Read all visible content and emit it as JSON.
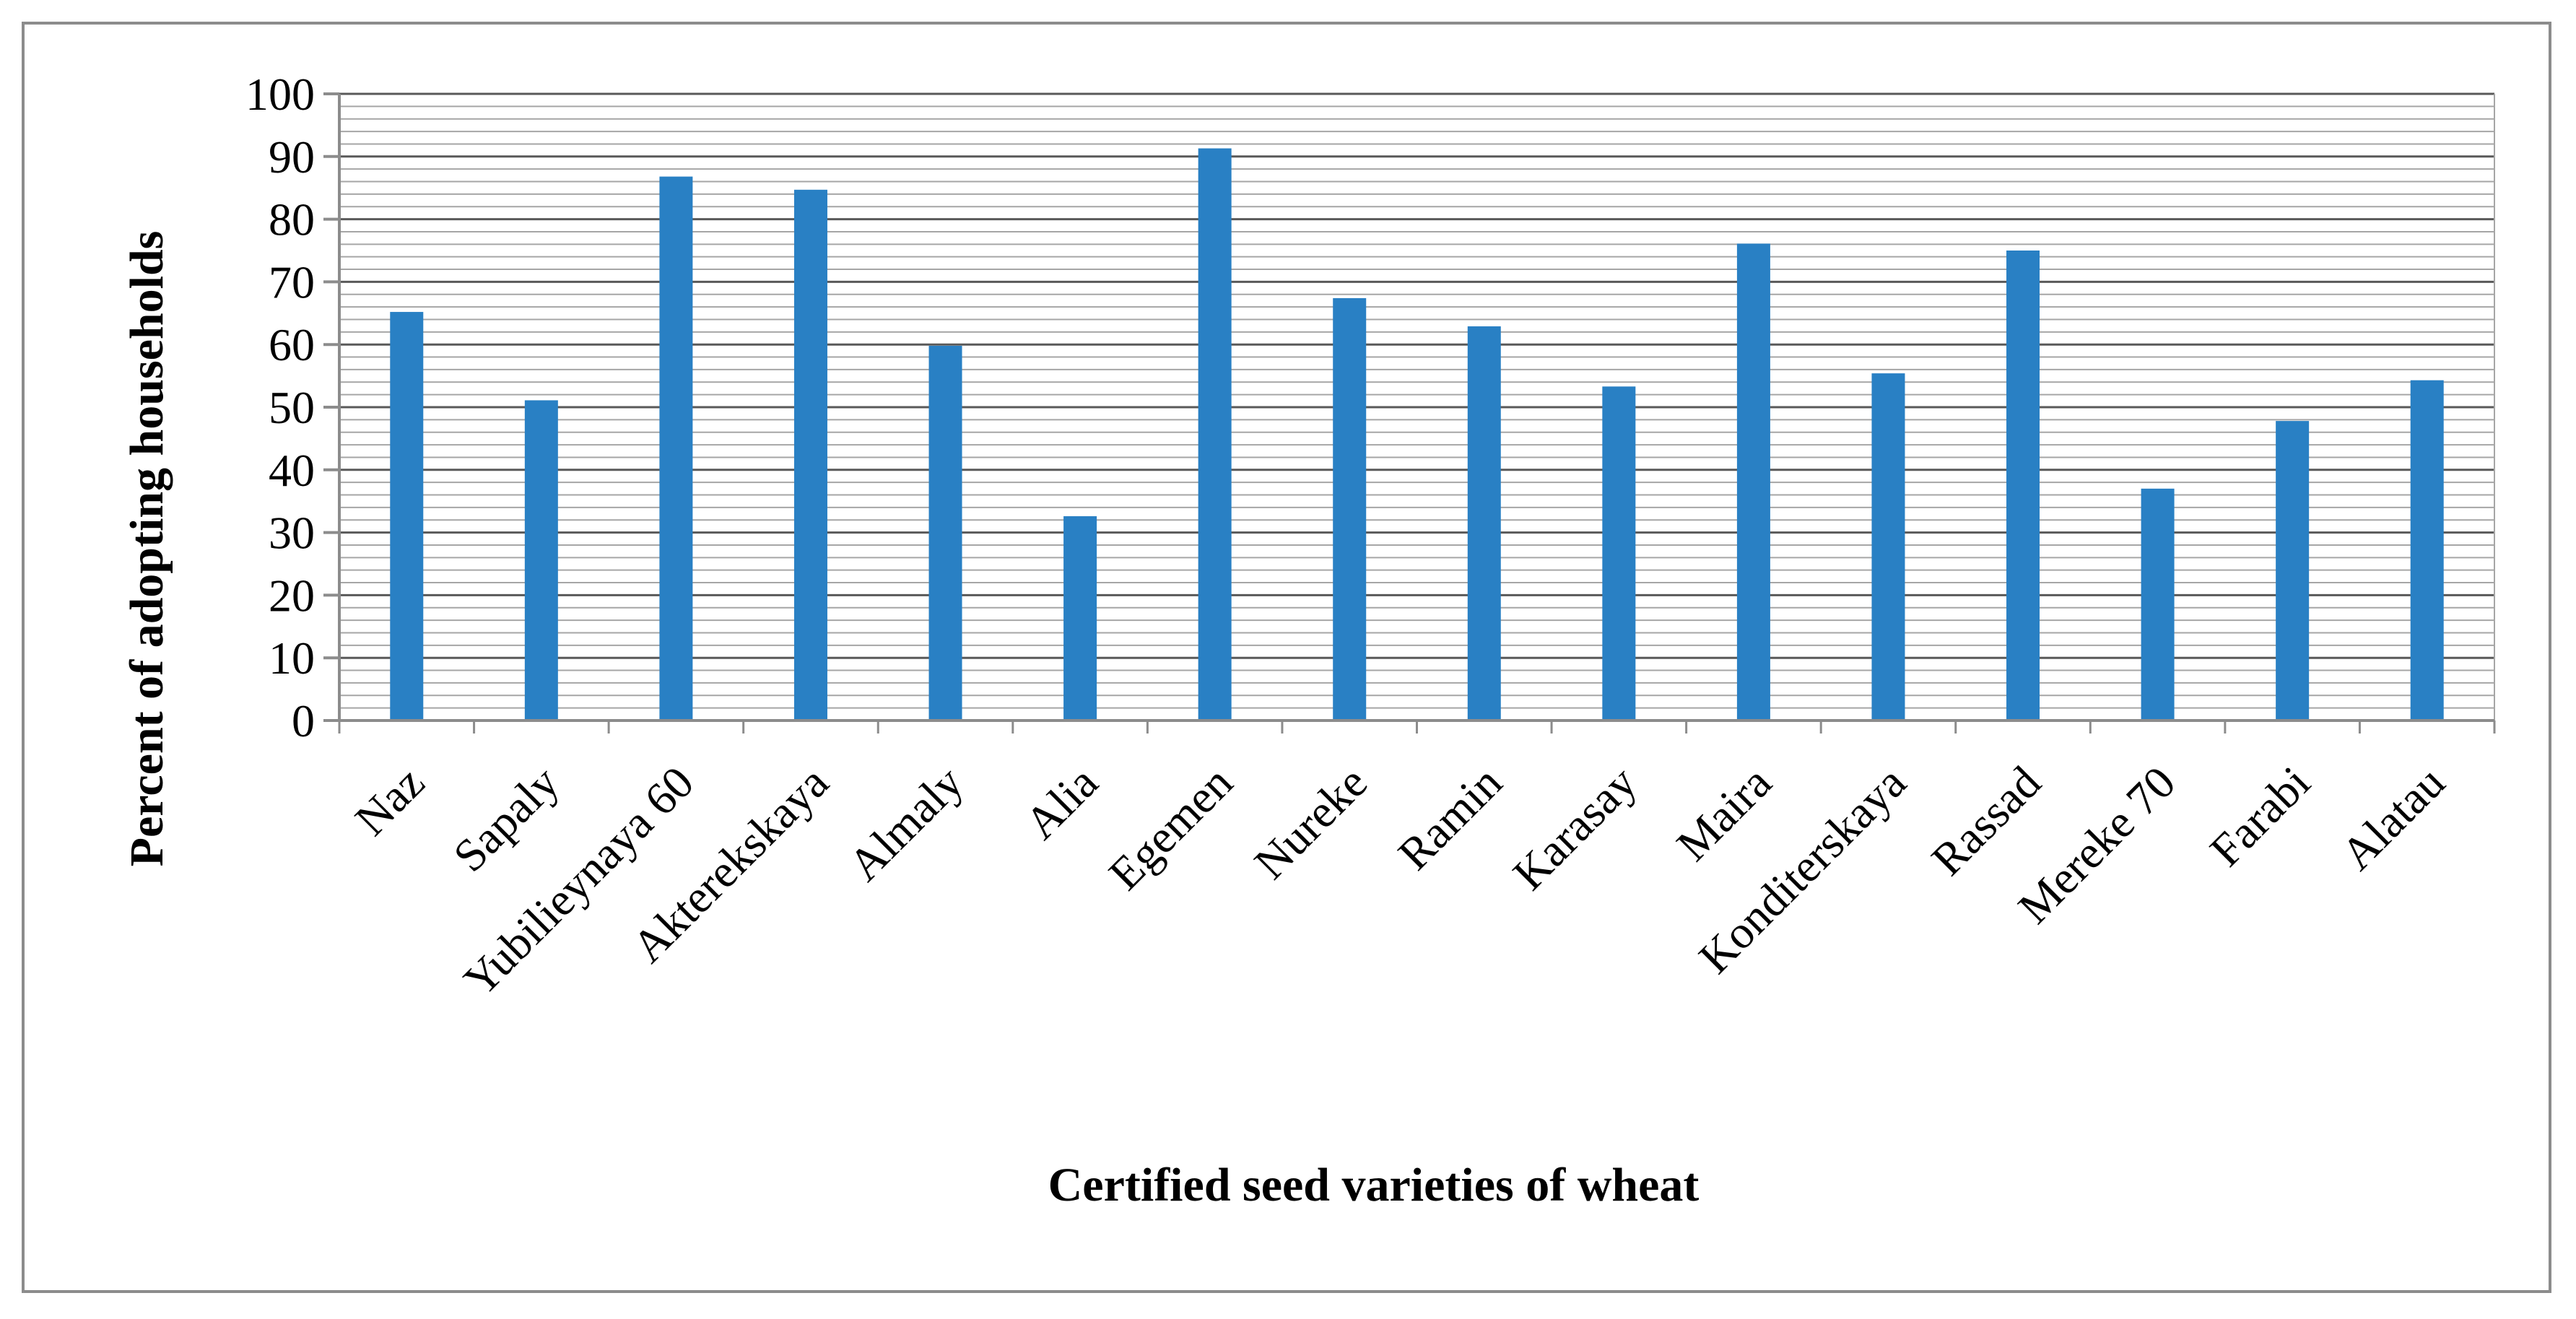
{
  "chart_data": {
    "type": "bar",
    "title": "",
    "xlabel": "Certified seed varieties of wheat",
    "ylabel": "Percent of adopting households",
    "ylim": [
      0,
      100
    ],
    "yticks": [
      "0",
      "10",
      "20",
      "30",
      "40",
      "50",
      "60",
      "70",
      "80",
      "90",
      "100"
    ],
    "grid": "horizontal, dense minor gridlines",
    "legend": "none",
    "bar_color": "#2980c4",
    "grid_color": "#a6a6a6",
    "major_grid_color": "#595959",
    "categories": [
      "Naz",
      "Sapaly",
      "Yubilieynaya 60",
      "Akterekskaya",
      "Almaly",
      "Alia",
      "Egemen",
      "Nureke",
      "Ramin",
      "Karasay",
      "Maira",
      "Konditerskaya",
      "Rassad",
      "Mereke 70",
      "Farabi",
      "Alatau"
    ],
    "values": [
      65.2,
      51.1,
      86.8,
      84.7,
      59.8,
      32.6,
      91.3,
      67.4,
      62.9,
      53.3,
      76.1,
      55.4,
      75.0,
      37.0,
      47.8,
      54.3
    ]
  }
}
